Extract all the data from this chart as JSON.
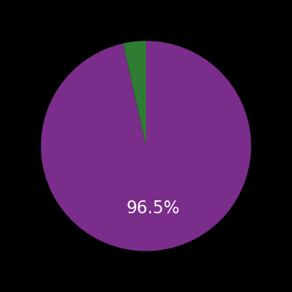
{
  "slices": [
    96.5,
    3.5
  ],
  "colors": [
    "#7b2d8b",
    "#2e7d32"
  ],
  "label_text": "96.5%",
  "label_color": "#ffffff",
  "label_fontsize": 15,
  "background_color": "#000000",
  "startangle": 90,
  "counterclock": false
}
